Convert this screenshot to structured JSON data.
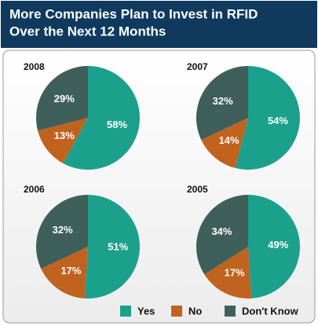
{
  "title": [
    "More Companies Plan to Invest in RFID",
    "Over the Next 12 Months"
  ],
  "chart_data": [
    {
      "type": "pie",
      "title": "2008",
      "categories": [
        "Yes",
        "No",
        "Don't Know"
      ],
      "values": [
        58,
        13,
        29
      ],
      "value_labels": [
        "58%",
        "13%",
        "29%"
      ],
      "colors": [
        "#1ba08c",
        "#c0631f",
        "#3f5f5b"
      ]
    },
    {
      "type": "pie",
      "title": "2007",
      "categories": [
        "Yes",
        "No",
        "Don't Know"
      ],
      "values": [
        54,
        14,
        32
      ],
      "value_labels": [
        "54%",
        "14%",
        "32%"
      ],
      "colors": [
        "#1ba08c",
        "#c0631f",
        "#3f5f5b"
      ]
    },
    {
      "type": "pie",
      "title": "2006",
      "categories": [
        "Yes",
        "No",
        "Don't Know"
      ],
      "values": [
        51,
        17,
        32
      ],
      "value_labels": [
        "51%",
        "17%",
        "32%"
      ],
      "colors": [
        "#1ba08c",
        "#c0631f",
        "#3f5f5b"
      ]
    },
    {
      "type": "pie",
      "title": "2005",
      "categories": [
        "Yes",
        "No",
        "Don't Know"
      ],
      "values": [
        49,
        17,
        34
      ],
      "value_labels": [
        "49%",
        "17%",
        "34%"
      ],
      "colors": [
        "#1ba08c",
        "#c0631f",
        "#3f5f5b"
      ]
    }
  ]
}
